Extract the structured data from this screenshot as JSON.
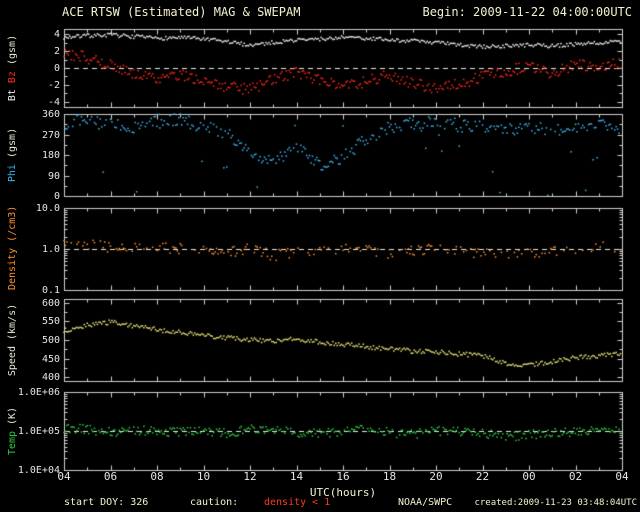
{
  "header": {
    "title": "ACE RTSW (Estimated) MAG & SWEPAM",
    "begin": "Begin: 2009-11-22 04:00:00UTC"
  },
  "footer": {
    "start_doy": "start DOY: 326",
    "caution_label": "caution:",
    "caution_value": "density < 1",
    "agency": "NOAA/SWPC",
    "created": "created:2009-11-23 03:48:04UTC"
  },
  "colors": {
    "background": "#000000",
    "frame": "#d0d0d0",
    "tick_text": "#e6e6e6",
    "header_text": "#f5f2cf",
    "dashed": "#e8e8e8",
    "caution": "#ff3b1f"
  },
  "chart_data": {
    "type": "scatter",
    "title": "ACE RTSW (Estimated) MAG & SWEPAM",
    "begin": "2009-11-22 04:00:00UTC",
    "grid": false,
    "xaxis": {
      "label": "UTC(hours)",
      "range_hours": [
        4,
        28
      ],
      "tick_hours": [
        4,
        6,
        8,
        10,
        12,
        14,
        16,
        18,
        20,
        22,
        24,
        26,
        28
      ],
      "tick_labels": [
        "04",
        "06",
        "08",
        "10",
        "12",
        "14",
        "16",
        "18",
        "20",
        "22",
        "00",
        "02",
        "04"
      ]
    },
    "anchor_hours": [
      4,
      5,
      6,
      7,
      8,
      9,
      10,
      11,
      12,
      13,
      14,
      15,
      16,
      17,
      18,
      19,
      20,
      21,
      22,
      23,
      24,
      25,
      26,
      27,
      28
    ],
    "panels": [
      {
        "id": "mag",
        "scale": "linear",
        "ylim": [
          -4.6,
          4.6
        ],
        "yticks": [
          {
            "v": 4,
            "label": "4"
          },
          {
            "v": 2,
            "label": "2"
          },
          {
            "v": 0,
            "label": "0"
          },
          {
            "v": -2,
            "label": "-2"
          },
          {
            "v": -4,
            "label": "-4"
          }
        ],
        "minor_yticks": [
          3,
          1,
          -1,
          -3
        ],
        "dashed_at": 0,
        "label_parts": [
          {
            "text": "Bt",
            "color": "#f2f2f2"
          },
          {
            "text": "Bz",
            "color": "#ff2a1a"
          },
          {
            "text": "(gsm)",
            "color": "#e8e8d8"
          }
        ],
        "series": [
          {
            "name": "Bt",
            "color": "#f2f2f2",
            "jitter": 0.22,
            "draw_prob": 1.0,
            "values": [
              3.6,
              3.8,
              3.9,
              3.7,
              3.5,
              3.6,
              3.4,
              3.1,
              2.7,
              3.0,
              3.3,
              3.4,
              3.6,
              3.5,
              3.3,
              3.2,
              3.0,
              2.7,
              2.5,
              2.6,
              2.7,
              2.6,
              2.8,
              3.0,
              3.1
            ]
          },
          {
            "name": "Bz",
            "color": "#ff2a1a",
            "jitter": 0.65,
            "draw_prob": 1.0,
            "values": [
              1.8,
              1.2,
              0.3,
              -0.6,
              -1.2,
              -0.8,
              -1.5,
              -2.2,
              -2.6,
              -1.2,
              -0.6,
              -1.4,
              -2.3,
              -1.6,
              -0.8,
              -1.8,
              -2.4,
              -1.9,
              -1.0,
              -0.4,
              0.2,
              -0.6,
              0.4,
              0.1,
              0.6
            ]
          }
        ]
      },
      {
        "id": "phi",
        "scale": "linear",
        "ylim": [
          0,
          360
        ],
        "yticks": [
          {
            "v": 360,
            "label": "360"
          },
          {
            "v": 270,
            "label": "270"
          },
          {
            "v": 180,
            "label": "180"
          },
          {
            "v": 90,
            "label": "90"
          },
          {
            "v": 0,
            "label": "0"
          }
        ],
        "minor_yticks": [
          315,
          225,
          135,
          45
        ],
        "dashed_at": null,
        "label_parts": [
          {
            "text": "Phi",
            "color": "#3db6f2"
          },
          {
            "text": "(gsm)",
            "color": "#e8e8d8"
          }
        ],
        "series": [
          {
            "name": "Phi",
            "color": "#3db6f2",
            "jitter": 28,
            "draw_prob": 0.85,
            "outlier_prob": 0.07,
            "values": [
              320,
              335,
              310,
              300,
              330,
              340,
              300,
              280,
              180,
              150,
              220,
              130,
              170,
              250,
              300,
              320,
              330,
              310,
              300,
              290,
              310,
              280,
              300,
              330,
              290
            ]
          }
        ]
      },
      {
        "id": "density",
        "scale": "log",
        "ylim": [
          0.1,
          10
        ],
        "yticks": [
          {
            "v": 10,
            "label": "10.0"
          },
          {
            "v": 1,
            "label": "1.0"
          },
          {
            "v": 0.1,
            "label": "0.1"
          }
        ],
        "minor_yticks": [],
        "dashed_at": 1,
        "label_parts": [
          {
            "text": "Density",
            "color": "#ff9030"
          },
          {
            "text": "(/cm3)",
            "color": "#ff9030"
          }
        ],
        "series": [
          {
            "name": "Density",
            "color": "#ff9030",
            "jitter": 0.13,
            "draw_prob": 0.5,
            "values": [
              1.6,
              1.3,
              1.1,
              1.0,
              1.1,
              1.0,
              0.9,
              0.8,
              1.0,
              0.7,
              0.8,
              0.9,
              1.0,
              0.9,
              0.8,
              0.9,
              1.0,
              0.9,
              0.8,
              0.7,
              0.8,
              0.9,
              1.0,
              1.2,
              1.1
            ]
          }
        ]
      },
      {
        "id": "speed",
        "scale": "linear",
        "ylim": [
          390,
          610
        ],
        "yticks": [
          {
            "v": 600,
            "label": "600"
          },
          {
            "v": 550,
            "label": "550"
          },
          {
            "v": 500,
            "label": "500"
          },
          {
            "v": 450,
            "label": "450"
          },
          {
            "v": 400,
            "label": "400"
          }
        ],
        "minor_yticks": [
          575,
          525,
          475,
          425
        ],
        "dashed_at": null,
        "label_parts": [
          {
            "text": "Speed",
            "color": "#e8e8d8"
          },
          {
            "text": "(km/s)",
            "color": "#e8e8d8"
          }
        ],
        "series": [
          {
            "name": "Speed",
            "color": "#e6e67a",
            "jitter": 6,
            "draw_prob": 1.0,
            "values": [
              525,
              540,
              548,
              538,
              528,
              520,
              512,
              506,
              500,
              498,
              502,
              494,
              488,
              482,
              476,
              470,
              468,
              462,
              458,
              436,
              432,
              442,
              452,
              458,
              462
            ]
          }
        ]
      },
      {
        "id": "temp",
        "scale": "log",
        "ylim": [
          10000,
          1000000
        ],
        "yticks": [
          {
            "v": 1000000,
            "label": "1.0E+06"
          },
          {
            "v": 100000,
            "label": "1.0E+05"
          },
          {
            "v": 10000,
            "label": "1.0E+04"
          }
        ],
        "minor_yticks": [],
        "dashed_at": 100000,
        "label_parts": [
          {
            "text": "Temp",
            "color": "#2ecc40"
          },
          {
            "text": "(K)",
            "color": "#e8e8d8"
          }
        ],
        "series": [
          {
            "name": "Temp",
            "color": "#2ecc40",
            "jitter": 0.12,
            "draw_prob": 0.95,
            "values": [
              120000,
              110000,
              95000,
              105000,
              100000,
              95000,
              100000,
              85000,
              115000,
              100000,
              92000,
              88000,
              100000,
              108000,
              92000,
              82000,
              98000,
              95000,
              90000,
              72000,
              80000,
              88000,
              98000,
              102000,
              96000
            ]
          }
        ]
      }
    ]
  }
}
